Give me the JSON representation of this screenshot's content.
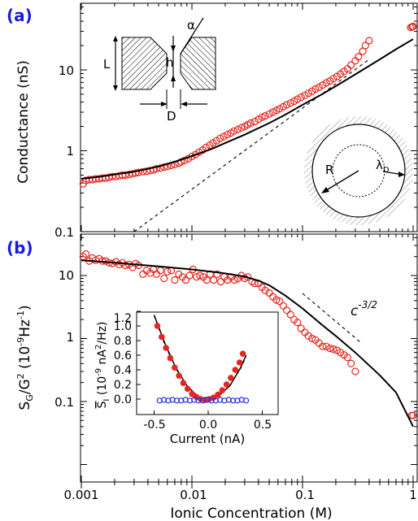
{
  "panel_labels": [
    "(a)",
    "(b)"
  ],
  "xlabel": "Ionic Concentration (M)",
  "x_ticks": [
    "0.001",
    "0.01",
    "0.1",
    "1"
  ],
  "colors": {
    "marker_red": "#e8261f",
    "marker_blue": "#2233dd",
    "panel_label": "#1a1adb",
    "curve": "#000000"
  },
  "chart_data": [
    {
      "type": "scatter",
      "panel": "(a)",
      "ylabel": "Conductance (nS)",
      "x_scale": "log",
      "y_scale": "log",
      "xlim": [
        0.001,
        1
      ],
      "ylim": [
        0.1,
        50
      ],
      "y_ticks": [
        "0.1",
        "1",
        "10"
      ],
      "series": [
        {
          "kind": "markers",
          "marker": "open-circle",
          "color": "#e8261f",
          "x": [
            0.00104,
            0.0011,
            0.00118,
            0.00126,
            0.00135,
            0.00145,
            0.00155,
            0.00166,
            0.00178,
            0.00191,
            0.00205,
            0.0022,
            0.00235,
            0.0025,
            0.0027,
            0.0029,
            0.0031,
            0.0033,
            0.0036,
            0.0039,
            0.0042,
            0.0045,
            0.0048,
            0.0052,
            0.0056,
            0.006,
            0.0065,
            0.007,
            0.0076,
            0.008,
            0.0086,
            0.0093,
            0.01,
            0.0108,
            0.0116,
            0.0125,
            0.0134,
            0.0145,
            0.0155,
            0.0167,
            0.018,
            0.0194,
            0.0209,
            0.0225,
            0.024,
            0.026,
            0.028,
            0.03,
            0.032,
            0.034,
            0.037,
            0.04,
            0.043,
            0.046,
            0.05,
            0.054,
            0.058,
            0.062,
            0.067,
            0.072,
            0.078,
            0.084,
            0.09,
            0.097,
            0.105,
            0.113,
            0.122,
            0.131,
            0.141,
            0.152,
            0.164,
            0.177,
            0.19,
            0.205,
            0.22,
            0.237,
            0.255,
            0.275,
            0.3,
            0.32,
            0.35,
            0.37,
            0.4,
            0.95,
            0.98,
            1.0
          ],
          "y": [
            0.39,
            0.43,
            0.44,
            0.44,
            0.45,
            0.45,
            0.46,
            0.46,
            0.47,
            0.48,
            0.48,
            0.49,
            0.5,
            0.5,
            0.51,
            0.52,
            0.53,
            0.54,
            0.55,
            0.56,
            0.57,
            0.58,
            0.6,
            0.61,
            0.63,
            0.64,
            0.66,
            0.68,
            0.7,
            0.73,
            0.76,
            0.8,
            0.85,
            0.9,
            0.96,
            1.02,
            1.1,
            1.17,
            1.25,
            1.33,
            1.42,
            1.5,
            1.58,
            1.66,
            1.75,
            1.83,
            1.92,
            2.0,
            2.1,
            2.2,
            2.3,
            2.45,
            2.6,
            2.7,
            2.85,
            3.0,
            3.15,
            3.3,
            3.5,
            3.7,
            3.9,
            4.1,
            4.35,
            4.6,
            4.85,
            5.15,
            5.45,
            5.8,
            6.1,
            6.5,
            6.9,
            7.3,
            7.8,
            8.3,
            8.9,
            9.6,
            10.3,
            11.5,
            13.0,
            14.5,
            17.0,
            20.0,
            23.0,
            33.5,
            34.0,
            34.5
          ]
        },
        {
          "kind": "solid-line",
          "color": "#000000",
          "x": [
            0.001,
            0.0015,
            0.002,
            0.003,
            0.005,
            0.007,
            0.01,
            0.015,
            0.02,
            0.03,
            0.05,
            0.07,
            0.1,
            0.15,
            0.2,
            0.3,
            0.5,
            0.7,
            1.0
          ],
          "y": [
            0.45,
            0.48,
            0.51,
            0.55,
            0.64,
            0.73,
            0.86,
            1.05,
            1.25,
            1.58,
            2.2,
            2.8,
            3.7,
            5.0,
            6.3,
            8.8,
            13.5,
            18.0,
            24.0
          ]
        },
        {
          "kind": "dashed-line",
          "color": "#000000",
          "x": [
            0.003,
            0.4
          ],
          "y": [
            0.1,
            13.5
          ]
        }
      ],
      "inset_schematic": {
        "labels": [
          "L",
          "h",
          "D",
          "α"
        ]
      },
      "inset_circle": {
        "labels": [
          "R",
          "λ",
          "D"
        ]
      }
    },
    {
      "type": "scatter",
      "panel": "(b)",
      "ylabel": "S_G/G^2 (10^-9 Hz^-1)",
      "ylabel_parts": {
        "s": "S",
        "g_sub": "G",
        "slash": "/G",
        "sup2": "2",
        "rest1": " (10",
        "sup1": "-9",
        "rest2": "Hz",
        "sup3": "-1",
        "rest3": ")"
      },
      "x_scale": "log",
      "y_scale": "log",
      "xlim": [
        0.001,
        1
      ],
      "ylim": [
        0.03,
        30
      ],
      "y_ticks": [
        "0.1",
        "1",
        "10"
      ],
      "annotation": {
        "base": "c",
        "exponent": "-3/2"
      },
      "series": [
        {
          "kind": "markers",
          "marker": "open-circle",
          "color": "#e8261f",
          "x": [
            0.00104,
            0.0011,
            0.00118,
            0.00126,
            0.00135,
            0.00145,
            0.00155,
            0.00166,
            0.00178,
            0.00191,
            0.00205,
            0.0022,
            0.00235,
            0.0025,
            0.0027,
            0.0029,
            0.0031,
            0.0033,
            0.0036,
            0.0039,
            0.0042,
            0.0045,
            0.0048,
            0.0052,
            0.0056,
            0.006,
            0.0065,
            0.007,
            0.0076,
            0.0082,
            0.0088,
            0.0095,
            0.0102,
            0.011,
            0.0118,
            0.0127,
            0.0136,
            0.0146,
            0.0157,
            0.0169,
            0.0182,
            0.0196,
            0.021,
            0.0226,
            0.0243,
            0.026,
            0.028,
            0.03,
            0.032,
            0.035,
            0.037,
            0.04,
            0.043,
            0.046,
            0.05,
            0.054,
            0.058,
            0.062,
            0.067,
            0.072,
            0.078,
            0.084,
            0.09,
            0.097,
            0.105,
            0.113,
            0.122,
            0.131,
            0.141,
            0.152,
            0.164,
            0.177,
            0.19,
            0.205,
            0.22,
            0.237,
            0.255,
            0.275,
            0.3,
            0.97,
            1.0
          ],
          "y": [
            20.0,
            22.0,
            17.0,
            19.0,
            17.5,
            18.5,
            17.0,
            17.0,
            16.0,
            15.5,
            16.5,
            15.0,
            16.0,
            14.5,
            15.0,
            13.5,
            15.5,
            14.5,
            10.5,
            12.0,
            11.0,
            12.5,
            10.5,
            12.0,
            9.0,
            11.5,
            12.0,
            8.5,
            10.5,
            9.5,
            8.5,
            10.0,
            12.5,
            9.5,
            10.0,
            9.5,
            8.5,
            10.5,
            8.5,
            10.5,
            8.0,
            9.5,
            8.5,
            9.5,
            8.5,
            9.0,
            10.0,
            9.0,
            9.5,
            8.0,
            7.5,
            7.5,
            6.5,
            5.8,
            5.3,
            4.6,
            4.1,
            3.9,
            3.3,
            2.8,
            2.4,
            2.0,
            1.8,
            1.45,
            1.25,
            1.1,
            1.0,
            0.95,
            0.85,
            0.75,
            0.75,
            0.7,
            0.68,
            0.65,
            0.6,
            0.55,
            0.5,
            0.4,
            0.3,
            0.06,
            0.06
          ]
        },
        {
          "kind": "solid-line",
          "color": "#000000",
          "x": [
            0.001,
            0.002,
            0.005,
            0.01,
            0.015,
            0.02,
            0.03,
            0.04,
            0.05,
            0.07,
            0.1,
            0.15,
            0.2,
            0.3,
            0.5,
            0.7,
            1.0
          ],
          "y": [
            17.5,
            16.0,
            14.0,
            12.5,
            11.5,
            10.8,
            9.6,
            8.3,
            7.0,
            4.8,
            3.0,
            1.65,
            1.1,
            0.6,
            0.26,
            0.14,
            0.04
          ]
        },
        {
          "kind": "dashed-line",
          "color": "#000000",
          "x": [
            0.1,
            0.34
          ],
          "y": [
            5.2,
            0.85
          ]
        }
      ],
      "inset": {
        "type": "scatter",
        "xlabel": "Current (nA)",
        "ylabel": "S̄_I (10^-9 nA^2/Hz)",
        "ylabel_parts": {
          "s": "S",
          "i_sub": "I",
          "rest1": " (10",
          "sup1": "-9",
          "rest2": " nA",
          "sup2": "2",
          "rest3": "/Hz)"
        },
        "xlim": [
          -0.65,
          0.55
        ],
        "ylim": [
          -0.1,
          1.25
        ],
        "x_ticks": [
          "-0.5",
          "0.0",
          "0.5"
        ],
        "y_ticks": [
          "0.0",
          "0.2",
          "0.4",
          "0.6",
          "0.8",
          "1.0",
          "1.2"
        ],
        "series": [
          {
            "kind": "filled-markers",
            "color": "#e8261f",
            "x": [
              -0.47,
              -0.43,
              -0.39,
              -0.35,
              -0.31,
              -0.27,
              -0.23,
              -0.19,
              -0.15,
              -0.11,
              -0.07,
              -0.03,
              0.01,
              0.05,
              0.09,
              0.13,
              0.17,
              0.21,
              0.25,
              0.29,
              0.32
            ],
            "y": [
              1.0,
              0.85,
              0.7,
              0.56,
              0.43,
              0.32,
              0.22,
              0.14,
              0.07,
              0.03,
              0.0,
              -0.01,
              0.0,
              0.02,
              0.06,
              0.12,
              0.2,
              0.29,
              0.4,
              0.5,
              0.62
            ]
          },
          {
            "kind": "open-markers",
            "color": "#2233dd",
            "x": [
              -0.45,
              -0.41,
              -0.37,
              -0.33,
              -0.29,
              -0.25,
              -0.21,
              -0.17,
              -0.13,
              -0.09,
              -0.05,
              -0.01,
              0.03,
              0.07,
              0.11,
              0.15,
              0.19,
              0.23,
              0.27,
              0.31,
              0.35
            ],
            "y": [
              -0.02,
              -0.01,
              -0.02,
              -0.01,
              -0.02,
              -0.02,
              -0.01,
              -0.02,
              -0.01,
              -0.02,
              -0.02,
              -0.01,
              -0.02,
              -0.02,
              -0.01,
              -0.02,
              -0.01,
              -0.02,
              -0.02,
              -0.01,
              -0.02
            ]
          },
          {
            "kind": "solid-line",
            "color": "#000000",
            "x": [
              -0.5,
              -0.4,
              -0.3,
              -0.2,
              -0.1,
              -0.05,
              0.0,
              0.05,
              0.1,
              0.2,
              0.3,
              0.35
            ],
            "y": [
              1.15,
              0.76,
              0.43,
              0.19,
              0.04,
              0.0,
              -0.01,
              0.01,
              0.05,
              0.18,
              0.43,
              0.6
            ]
          },
          {
            "kind": "dashed-line",
            "color": "#000000",
            "x": [
              -0.5,
              -0.4,
              -0.3,
              -0.2,
              -0.1,
              0.0,
              0.1,
              0.2,
              0.3,
              0.35
            ],
            "y": [
              1.14,
              0.74,
              0.42,
              0.18,
              0.04,
              -0.01,
              0.05,
              0.18,
              0.42,
              0.58
            ]
          }
        ]
      }
    }
  ]
}
